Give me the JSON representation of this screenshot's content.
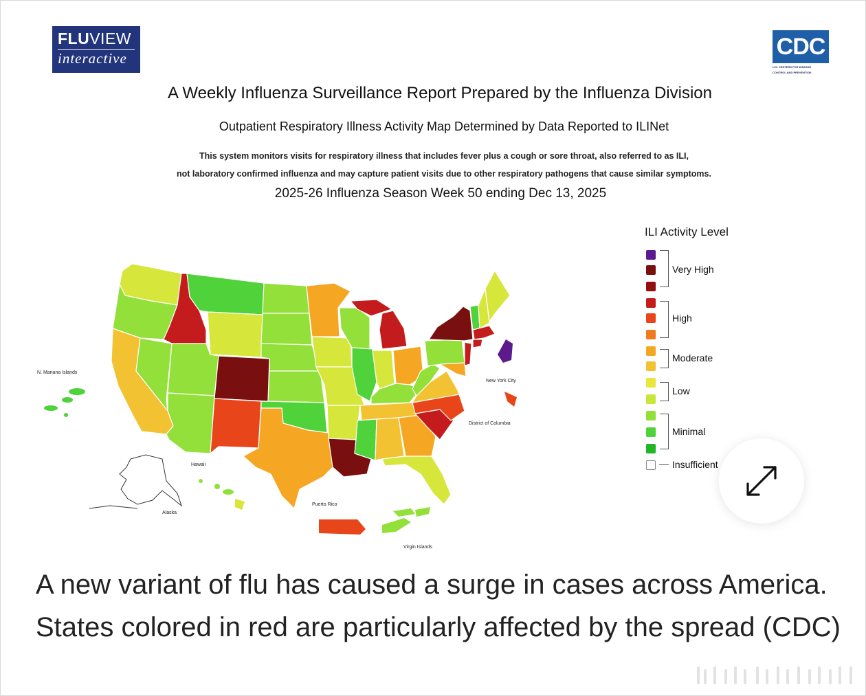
{
  "logos": {
    "fluview_bold": "FLU",
    "fluview_light": "VIEW",
    "fluview_sub": "interactive",
    "cdc_mark": "CDC",
    "cdc_sub_line1": "U.S. CENTERS FOR DISEASE",
    "cdc_sub_line2": "CONTROL AND PREVENTION"
  },
  "header": {
    "title": "A Weekly Influenza Surveillance Report Prepared by the Influenza Division",
    "subtitle": "Outpatient Respiratory Illness Activity Map Determined by Data Reported to ILINet",
    "note_line1": "This system monitors visits for respiratory illness that includes fever plus a cough or sore throat, also referred to as ILI,",
    "note_line2": "not laboratory confirmed influenza and may capture patient visits due to other respiratory pathogens that cause similar symptoms.",
    "season": "2025-26 Influenza Season Week 50 ending Dec 13, 2025"
  },
  "map_labels": {
    "mariana": "N. Mariana Islands",
    "nyc": "New York City",
    "dc": "District of Columbia",
    "hawaii": "Hawaii",
    "alaska": "Alaska",
    "puerto_rico": "Puerto Rico",
    "virgin_islands": "Virgin Islands"
  },
  "legend": {
    "title": "ILI Activity Level",
    "very_high": "Very High",
    "high": "High",
    "moderate": "Moderate",
    "low": "Low",
    "minimal": "Minimal",
    "insufficient": "Insufficient",
    "level_colors": [
      "#5b1b8c",
      "#7a0f0f",
      "#930f0f",
      "#c41c1c",
      "#e8461a",
      "#f07a1e",
      "#f5a623",
      "#f2c232",
      "#e8e83c",
      "#c8e63c",
      "#93e03a",
      "#4fd23a",
      "#22b526"
    ]
  },
  "map_colors": {
    "purple": "#5b1b8c",
    "dark_red": "#7a0f0f",
    "red": "#c41c1c",
    "orange_red": "#e8461a",
    "orange": "#f5a623",
    "yellow": "#f2c232",
    "yellow_green": "#d6e63a",
    "light_green": "#93e03a",
    "green": "#4fd23a",
    "dark_green": "#22b526"
  },
  "caption": {
    "text": "A new variant of flu has caused a surge in cases across America. States colored in red are particularly affected by the spread (CDC)"
  }
}
